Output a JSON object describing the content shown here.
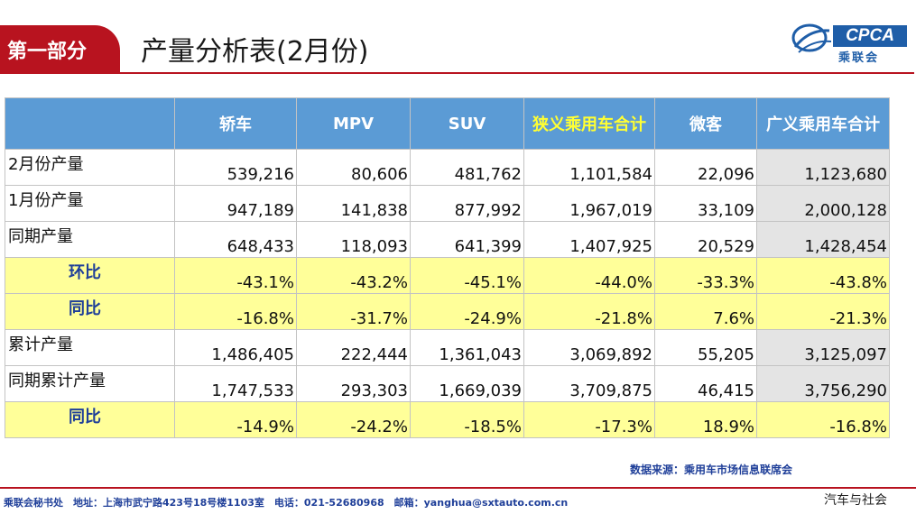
{
  "header": {
    "section": "第一部分",
    "title": "产量分析表(2月份)",
    "logo_text": "CPCA",
    "logo_cn": "乘联会"
  },
  "table": {
    "columns": [
      "",
      "轿车",
      "MPV",
      "SUV",
      "狭义乘用车合计",
      "微客",
      "广义乘用车合计"
    ],
    "rows": [
      {
        "label": "2月份产量",
        "values": [
          "539,216",
          "80,606",
          "481,762",
          "1,101,584",
          "22,096",
          "1,123,680"
        ],
        "style": "white"
      },
      {
        "label": "1月份产量",
        "values": [
          "947,189",
          "141,838",
          "877,992",
          "1,967,019",
          "33,109",
          "2,000,128"
        ],
        "style": "white"
      },
      {
        "label": "同期产量",
        "values": [
          "648,433",
          "118,093",
          "641,399",
          "1,407,925",
          "20,529",
          "1,428,454"
        ],
        "style": "white"
      },
      {
        "label": "环比",
        "values": [
          "-43.1%",
          "-43.2%",
          "-45.1%",
          "-44.0%",
          "-33.3%",
          "-43.8%"
        ],
        "style": "yellow"
      },
      {
        "label": "同比",
        "values": [
          "-16.8%",
          "-31.7%",
          "-24.9%",
          "-21.8%",
          "7.6%",
          "-21.3%"
        ],
        "style": "yellow"
      },
      {
        "label": "累计产量",
        "values": [
          "1,486,405",
          "222,444",
          "1,361,043",
          "3,069,892",
          "55,205",
          "3,125,097"
        ],
        "style": "white"
      },
      {
        "label": "同期累计产量",
        "values": [
          "1,747,533",
          "293,303",
          "1,669,039",
          "3,709,875",
          "46,415",
          "3,756,290"
        ],
        "style": "white"
      },
      {
        "label": "同比",
        "values": [
          "-14.9%",
          "-24.2%",
          "-18.5%",
          "-17.3%",
          "18.9%",
          "-16.8%"
        ],
        "style": "yellow"
      }
    ]
  },
  "source": "数据来源：乘用车市场信息联席会",
  "footer": "乘联会秘书处　地址：上海市武宁路423号18号楼1103室　电话：021-52680968　邮箱：yanghua@sxtauto.com.cn",
  "watermark": "汽车与社会",
  "colors": {
    "brand_red": "#b8131f",
    "header_blue": "#5b9bd5",
    "highlight_yellow": "#ffff99"
  }
}
